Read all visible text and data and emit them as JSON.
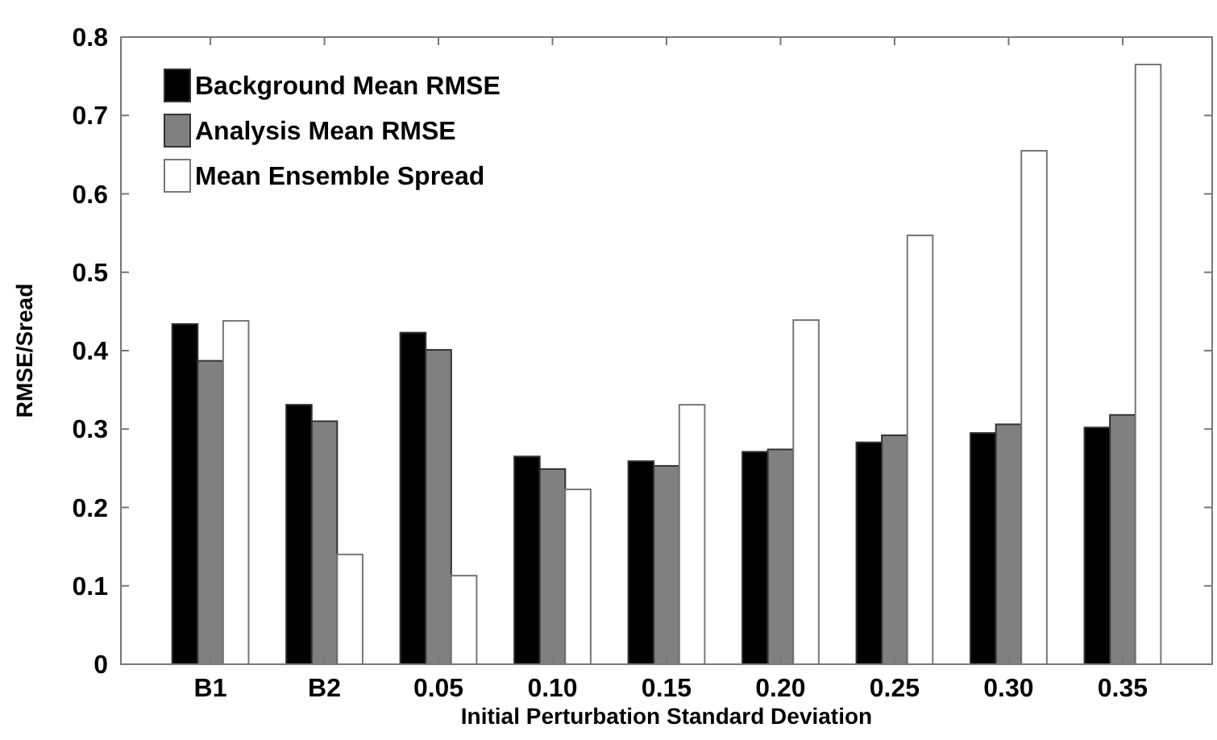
{
  "chart_data": {
    "type": "bar",
    "xlabel": "Initial Perturbation Standard Deviation",
    "ylabel": "RMSE/Sread",
    "categories": [
      "B1",
      "B2",
      "0.05",
      "0.10",
      "0.15",
      "0.20",
      "0.25",
      "0.30",
      "0.35"
    ],
    "series": [
      {
        "name": "Background Mean RMSE",
        "color": "#000000",
        "values": [
          0.434,
          0.331,
          0.423,
          0.265,
          0.259,
          0.271,
          0.283,
          0.295,
          0.302
        ]
      },
      {
        "name": "Analysis Mean RMSE",
        "color": "#808080",
        "values": [
          0.387,
          0.31,
          0.401,
          0.249,
          0.253,
          0.274,
          0.292,
          0.306,
          0.318
        ]
      },
      {
        "name": "Mean Ensemble Spread",
        "color": "#ffffff",
        "values": [
          0.438,
          0.14,
          0.113,
          0.223,
          0.331,
          0.439,
          0.547,
          0.655,
          0.765
        ]
      }
    ],
    "ylim": [
      0,
      0.8
    ],
    "yticks": [
      0,
      0.1,
      0.2,
      0.3,
      0.4,
      0.5,
      0.6,
      0.7,
      0.8
    ],
    "legend": "top left"
  }
}
